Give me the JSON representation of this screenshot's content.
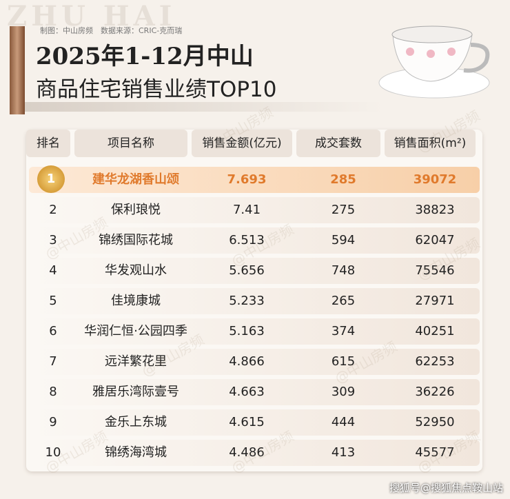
{
  "header": {
    "watermark": "ZHU HAI",
    "credits": "制图：中山房频　数据来源：CRIC-克而瑞",
    "title_line1": "2025年1-12月中山",
    "title_line2": "商品住宅销售业绩TOP10"
  },
  "table": {
    "columns": [
      "排名",
      "项目名称",
      "销售金额(亿元)",
      "成交套数",
      "销售面积(m²)"
    ],
    "rows": [
      [
        1,
        "建华龙湖香山颂",
        7.693,
        285,
        39072
      ],
      [
        2,
        "保利琅悦",
        7.41,
        275,
        38823
      ],
      [
        3,
        "锦绣国际花城",
        6.513,
        594,
        62047
      ],
      [
        4,
        "华发观山水",
        5.656,
        748,
        75546
      ],
      [
        5,
        "佳境康城",
        5.233,
        265,
        27971
      ],
      [
        6,
        "华润仁恒·公园四季",
        5.163,
        374,
        40251
      ],
      [
        7,
        "远洋繁花里",
        4.866,
        615,
        62253
      ],
      [
        8,
        "雅居乐湾际壹号",
        4.663,
        309,
        36226
      ],
      [
        9,
        "金乐上东城",
        4.615,
        444,
        52950
      ],
      [
        10,
        "锦绣海湾城",
        4.486,
        413,
        45577
      ]
    ]
  },
  "watermark": "@中山房频",
  "footer": "搜狐号@搜狐焦点鞍山站"
}
